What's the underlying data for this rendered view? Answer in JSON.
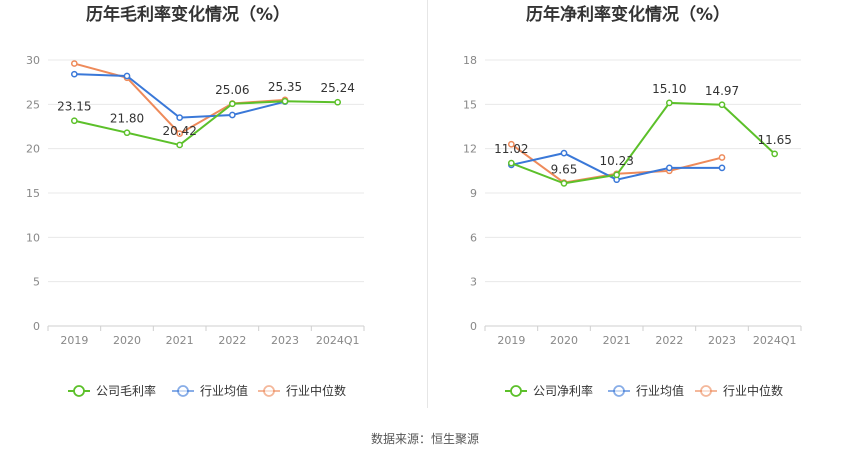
{
  "charts": [
    {
      "title": "历年毛利率变化情况（%）",
      "chart_data": {
        "type": "line",
        "categories": [
          "2019",
          "2020",
          "2021",
          "2022",
          "2023",
          "2024Q1"
        ],
        "ylim": [
          0,
          30
        ],
        "yticks": [
          0,
          5,
          10,
          15,
          20,
          25,
          30
        ],
        "grid": true,
        "legend_position": "bottom",
        "series": [
          {
            "name": "公司毛利率",
            "color": "#5cc02a",
            "values": [
              23.15,
              21.8,
              20.42,
              25.06,
              25.35,
              25.24
            ],
            "labels": [
              "23.15",
              "21.80",
              "20.42",
              "25.06",
              "25.35",
              "25.24"
            ]
          },
          {
            "name": "行业均值",
            "color": "#3a78d8",
            "values": [
              28.4,
              28.2,
              23.5,
              23.8,
              25.3,
              null
            ]
          },
          {
            "name": "行业中位数",
            "color": "#ee8a5a",
            "values": [
              29.6,
              28.0,
              21.7,
              25.1,
              25.5,
              null
            ]
          }
        ]
      }
    },
    {
      "title": "历年净利率变化情况（%）",
      "chart_data": {
        "type": "line",
        "categories": [
          "2019",
          "2020",
          "2021",
          "2022",
          "2023",
          "2024Q1"
        ],
        "ylim": [
          0,
          18
        ],
        "yticks": [
          0,
          3,
          6,
          9,
          12,
          15,
          18
        ],
        "grid": true,
        "legend_position": "bottom",
        "series": [
          {
            "name": "公司净利率",
            "color": "#5cc02a",
            "values": [
              11.02,
              9.65,
              10.23,
              15.1,
              14.97,
              11.65
            ],
            "labels": [
              "11.02",
              "9.65",
              "10.23",
              "15.10",
              "14.97",
              "11.65"
            ]
          },
          {
            "name": "行业均值",
            "color": "#3a78d8",
            "values": [
              10.9,
              11.7,
              9.9,
              10.7,
              10.7,
              null
            ]
          },
          {
            "name": "行业中位数",
            "color": "#ee8a5a",
            "values": [
              12.3,
              9.7,
              10.3,
              10.5,
              11.4,
              null
            ]
          }
        ]
      }
    }
  ],
  "source": "数据来源：恒生聚源"
}
